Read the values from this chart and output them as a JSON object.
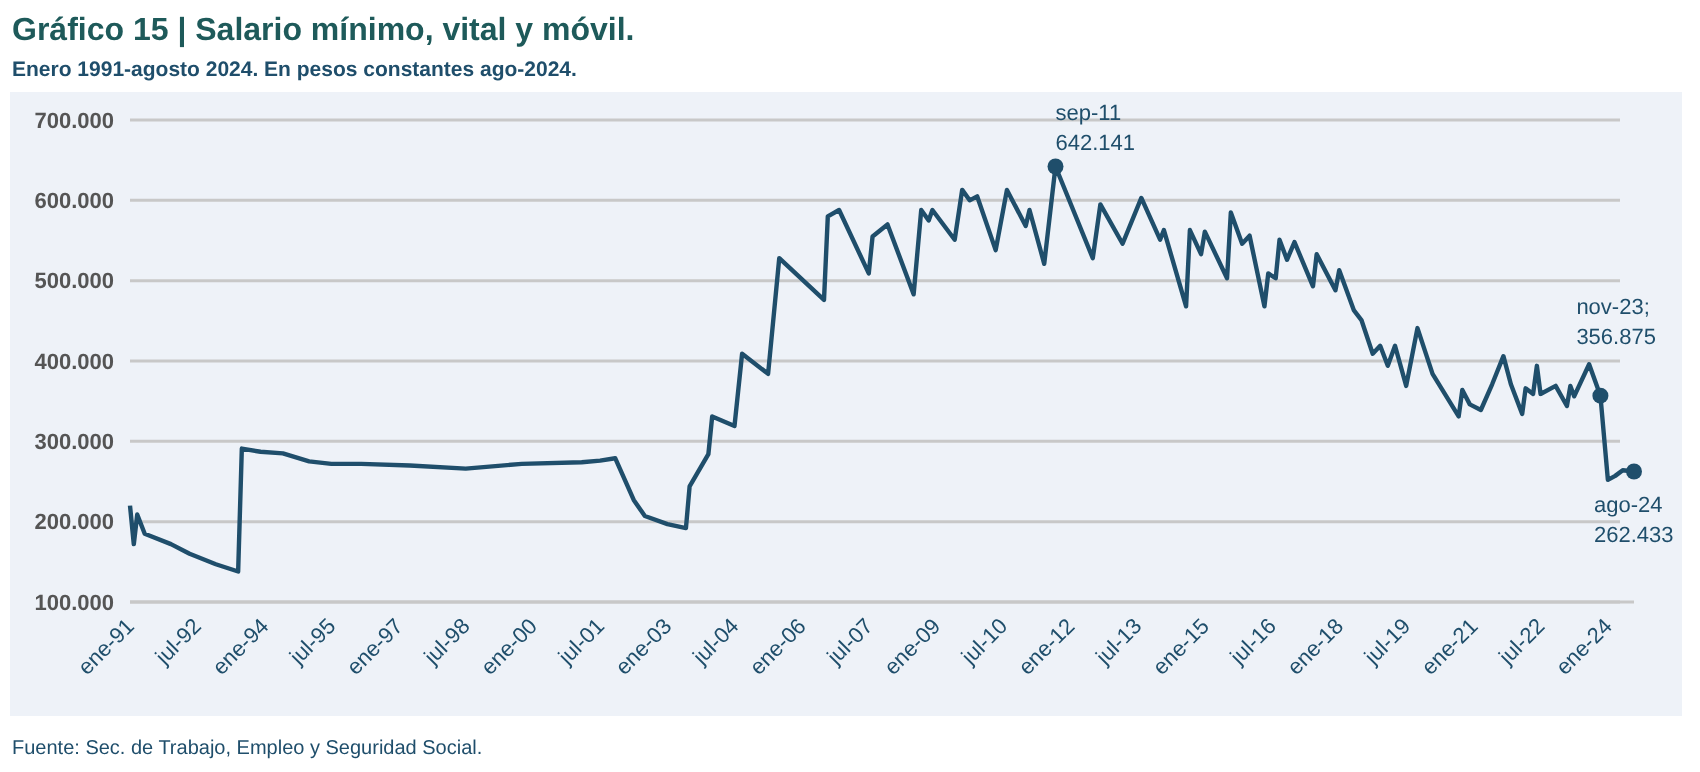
{
  "chart_data": {
    "type": "line",
    "title": "Gráfico 15 | Salario mínimo, vital y móvil.",
    "subtitle": "Enero 1991-agosto 2024. En pesos constantes ago-2024.",
    "x": [
      "1991-01",
      "1991-02",
      "1991-03",
      "1991-05",
      "1991-12",
      "1992-05",
      "1992-12",
      "1993-06",
      "1993-07",
      "1993-12",
      "1994-06",
      "1995-01",
      "1995-07",
      "1996-03",
      "1997-04",
      "1998-07",
      "1999-10",
      "2001-02",
      "2001-07",
      "2001-11",
      "2002-04",
      "2002-07",
      "2003-01",
      "2003-06",
      "2003-07",
      "2003-12",
      "2004-01",
      "2004-07",
      "2004-09",
      "2005-04",
      "2005-07",
      "2006-07",
      "2006-08",
      "2006-11",
      "2007-07",
      "2007-08",
      "2007-12",
      "2008-07",
      "2008-09",
      "2008-11",
      "2008-12",
      "2009-06",
      "2009-08",
      "2009-10",
      "2009-12",
      "2010-05",
      "2010-08",
      "2011-01",
      "2011-02",
      "2011-06",
      "2011-09",
      "2012-07",
      "2012-09",
      "2013-03",
      "2013-08",
      "2014-01",
      "2014-02",
      "2014-08",
      "2014-09",
      "2014-12",
      "2015-01",
      "2015-07",
      "2015-08",
      "2015-11",
      "2016-01",
      "2016-05",
      "2016-06",
      "2016-08",
      "2016-09",
      "2016-11",
      "2017-01",
      "2017-06",
      "2017-07",
      "2017-12",
      "2018-01",
      "2018-05",
      "2018-07",
      "2018-10",
      "2018-12",
      "2019-02",
      "2019-04",
      "2019-07",
      "2019-10",
      "2020-02",
      "2020-09",
      "2020-10",
      "2020-12",
      "2021-03",
      "2021-06",
      "2021-09",
      "2021-11",
      "2022-02",
      "2022-03",
      "2022-05",
      "2022-06",
      "2022-07",
      "2022-11",
      "2023-02",
      "2023-03",
      "2023-04",
      "2023-08",
      "2023-11",
      "2024-01",
      "2024-03",
      "2024-05",
      "2024-08"
    ],
    "series": [
      {
        "color": "#1f4e6b",
        "values": [
          220000,
          172000,
          209000,
          185000,
          172000,
          160000,
          147000,
          138000,
          291000,
          287000,
          285000,
          275000,
          272000,
          272000,
          270000,
          266000,
          272000,
          274000,
          276000,
          279000,
          227000,
          207000,
          197000,
          192000,
          244000,
          284000,
          331000,
          319000,
          409000,
          384000,
          528000,
          476000,
          580000,
          588000,
          509000,
          555000,
          570000,
          483000,
          588000,
          575000,
          588000,
          551000,
          613000,
          600000,
          605000,
          538000,
          613000,
          568000,
          588000,
          521000,
          642141,
          528000,
          595000,
          546000,
          603000,
          551000,
          563000,
          468000,
          563000,
          533000,
          561000,
          503000,
          585000,
          546000,
          556000,
          468000,
          509000,
          503000,
          551000,
          526000,
          548000,
          493000,
          533000,
          488000,
          513000,
          463000,
          451000,
          409000,
          419000,
          394000,
          419000,
          369000,
          441000,
          384000,
          331000,
          364000,
          346000,
          339000,
          371000,
          406000,
          371000,
          334000,
          366000,
          359000,
          394000,
          359000,
          369000,
          344000,
          369000,
          356000,
          396000,
          356875,
          252000,
          257000,
          264000,
          262433
        ]
      }
    ],
    "xlim": [
      "1991-01",
      "2024-08"
    ],
    "xticks": [
      {
        "value": "1991-01",
        "label": "ene-91"
      },
      {
        "value": "1992-07",
        "label": "jul-92"
      },
      {
        "value": "1994-01",
        "label": "ene-94"
      },
      {
        "value": "1995-07",
        "label": "jul-95"
      },
      {
        "value": "1997-01",
        "label": "ene-97"
      },
      {
        "value": "1998-07",
        "label": "jul-98"
      },
      {
        "value": "2000-01",
        "label": "ene-00"
      },
      {
        "value": "2001-07",
        "label": "jul-01"
      },
      {
        "value": "2003-01",
        "label": "ene-03"
      },
      {
        "value": "2004-07",
        "label": "jul-04"
      },
      {
        "value": "2006-01",
        "label": "ene-06"
      },
      {
        "value": "2007-07",
        "label": "jul-07"
      },
      {
        "value": "2009-01",
        "label": "ene-09"
      },
      {
        "value": "2010-07",
        "label": "jul-10"
      },
      {
        "value": "2012-01",
        "label": "ene-12"
      },
      {
        "value": "2013-07",
        "label": "jul-13"
      },
      {
        "value": "2015-01",
        "label": "ene-15"
      },
      {
        "value": "2016-07",
        "label": "jul-16"
      },
      {
        "value": "2018-01",
        "label": "ene-18"
      },
      {
        "value": "2019-07",
        "label": "jul-19"
      },
      {
        "value": "2021-01",
        "label": "ene-21"
      },
      {
        "value": "2022-07",
        "label": "jul-22"
      },
      {
        "value": "2024-01",
        "label": "ene-24"
      }
    ],
    "ylim": [
      100000,
      700000
    ],
    "yticks": [
      {
        "value": 100000,
        "label": "100.000"
      },
      {
        "value": 200000,
        "label": "200.000"
      },
      {
        "value": 300000,
        "label": "300.000"
      },
      {
        "value": 400000,
        "label": "400.000"
      },
      {
        "value": 500000,
        "label": "500.000"
      },
      {
        "value": 600000,
        "label": "600.000"
      },
      {
        "value": 700000,
        "label": "700.000"
      }
    ],
    "grid": "y",
    "marker": "none",
    "line_style": "solid",
    "annotations": [
      {
        "text": "sep-11\n642.141",
        "x": "2011-09",
        "y": 642141
      },
      {
        "text": "nov-23;\n356.875",
        "x": "2023-11",
        "y": 356875
      },
      {
        "text": "ago-24\n262.433",
        "x": "2024-08",
        "y": 262433
      },
      "Fuente: Sec. de Trabajo, Empleo y Seguridad Social."
    ]
  }
}
